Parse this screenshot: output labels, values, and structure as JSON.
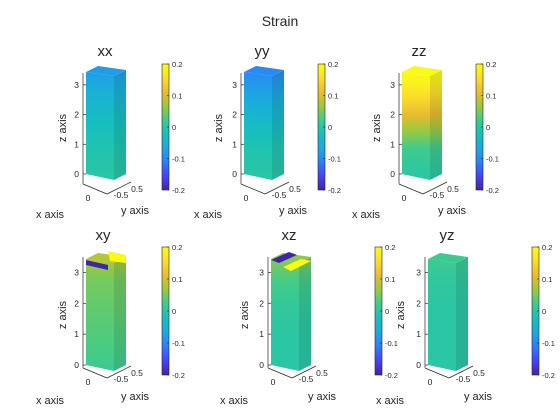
{
  "figure": {
    "title": "Strain"
  },
  "colormap": [
    "#3e26a8",
    "#4743f8",
    "#2d7ffb",
    "#1ca9df",
    "#17c0bc",
    "#3ecb8d",
    "#9bc93c",
    "#ecba30",
    "#fbdd2d",
    "#f9fb15"
  ],
  "chart_data": [
    {
      "type": "heatmap",
      "panel": "xx",
      "title": "xx",
      "xlabel": "x axis",
      "ylabel": "y axis",
      "zlabel": "z axis",
      "x_ticks": [
        "0"
      ],
      "y_ticks": [
        "0.5",
        "-0.5"
      ],
      "z_ticks": [
        "0",
        "1",
        "2",
        "3"
      ],
      "zlim": [
        -0.2,
        3.5
      ],
      "clim": [
        -0.2,
        0.2
      ],
      "colorbar_ticks": [
        "0.2",
        "0.1",
        "0",
        "-0.1",
        "-0.2"
      ],
      "strain_profile": {
        "z": [
          0,
          1,
          2,
          3,
          3.5
        ],
        "value": [
          0.0,
          -0.01,
          -0.03,
          -0.06,
          -0.08
        ]
      }
    },
    {
      "type": "heatmap",
      "panel": "yy",
      "title": "yy",
      "xlabel": "x axis",
      "ylabel": "y axis",
      "zlabel": "z axis",
      "x_ticks": [
        "0"
      ],
      "y_ticks": [
        "0.5",
        "-0.5"
      ],
      "z_ticks": [
        "0",
        "1",
        "2",
        "3"
      ],
      "zlim": [
        -0.2,
        3.5
      ],
      "clim": [
        -0.2,
        0.2
      ],
      "colorbar_ticks": [
        "0.2",
        "0.1",
        "0",
        "-0.1",
        "-0.2"
      ],
      "strain_profile": {
        "z": [
          0,
          1,
          2,
          3,
          3.5
        ],
        "value": [
          0.0,
          -0.01,
          -0.04,
          -0.08,
          -0.1
        ]
      }
    },
    {
      "type": "heatmap",
      "panel": "zz",
      "title": "zz",
      "xlabel": "x axis",
      "ylabel": "y axis",
      "zlabel": "z axis",
      "x_ticks": [
        "0"
      ],
      "y_ticks": [
        "0.5",
        "-0.5"
      ],
      "z_ticks": [
        "0",
        "1",
        "2",
        "3"
      ],
      "zlim": [
        -0.2,
        3.5
      ],
      "clim": [
        -0.2,
        0.2
      ],
      "colorbar_ticks": [
        "0.2",
        "0.1",
        "0",
        "-0.1",
        "-0.2"
      ],
      "strain_profile": {
        "z": [
          0,
          1,
          2,
          3,
          3.5
        ],
        "value": [
          0.0,
          0.02,
          0.1,
          0.18,
          0.2
        ]
      }
    },
    {
      "type": "heatmap",
      "panel": "xy",
      "title": "xy",
      "xlabel": "x axis",
      "ylabel": "y axis",
      "zlabel": "z axis",
      "x_ticks": [
        "0"
      ],
      "y_ticks": [
        "0.5",
        "-0.5"
      ],
      "z_ticks": [
        "0",
        "1",
        "2",
        "3"
      ],
      "zlim": [
        -0.2,
        3.5
      ],
      "clim": [
        -0.2,
        0.2
      ],
      "colorbar_ticks": [
        "0.2",
        "0.1",
        "0",
        "-0.1",
        "-0.2"
      ],
      "strain_profile": {
        "z": [
          0,
          1,
          2,
          3,
          3.5
        ],
        "value": [
          0.02,
          0.03,
          0.04,
          0.05,
          0.08
        ]
      },
      "top_extremes": {
        "min": -0.2,
        "max": 0.2
      }
    },
    {
      "type": "heatmap",
      "panel": "xz",
      "title": "xz",
      "xlabel": "x axis",
      "ylabel": "y axis",
      "zlabel": "z axis",
      "x_ticks": [
        "0"
      ],
      "y_ticks": [
        "0.5",
        "-0.5"
      ],
      "z_ticks": [
        "0",
        "1",
        "2",
        "3"
      ],
      "zlim": [
        -0.2,
        3.5
      ],
      "clim": [
        -0.2,
        0.2
      ],
      "colorbar_ticks": [
        "0.2",
        "0.1",
        "0",
        "-0.1",
        "-0.2"
      ],
      "strain_profile": {
        "z": [
          0,
          1,
          2,
          3,
          3.5
        ],
        "value": [
          0.0,
          0.0,
          0.01,
          0.03,
          0.06
        ]
      },
      "top_extremes": {
        "min": -0.2,
        "max": 0.2
      }
    },
    {
      "type": "heatmap",
      "panel": "yz",
      "title": "yz",
      "xlabel": "x axis",
      "ylabel": "y axis",
      "zlabel": "z axis",
      "x_ticks": [
        "0"
      ],
      "y_ticks": [
        "0.5",
        "-0.5"
      ],
      "z_ticks": [
        "0",
        "1",
        "2",
        "3"
      ],
      "zlim": [
        -0.2,
        3.5
      ],
      "clim": [
        -0.2,
        0.2
      ],
      "colorbar_ticks": [
        "0.2",
        "0.1",
        "0",
        "-0.1",
        "-0.2"
      ],
      "strain_profile": {
        "z": [
          0,
          1,
          2,
          3,
          3.5
        ],
        "value": [
          0.0,
          0.0,
          0.0,
          0.01,
          0.02
        ]
      }
    }
  ]
}
